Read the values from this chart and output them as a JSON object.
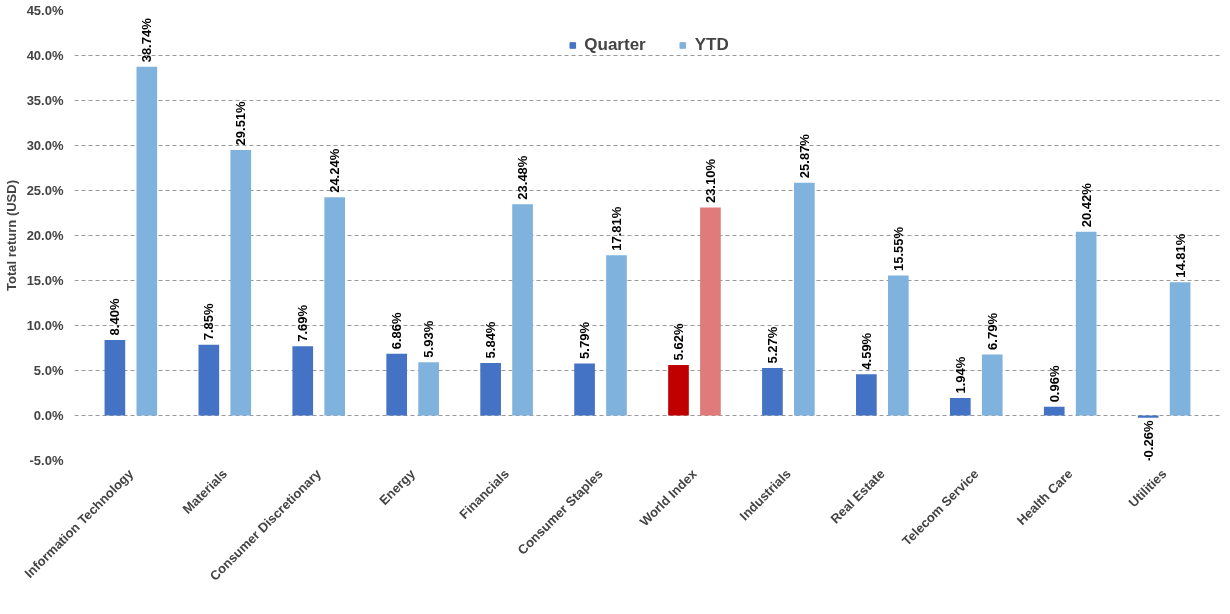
{
  "chart_data": {
    "type": "bar",
    "ylabel": "Total return (USD)",
    "categories": [
      "Information Technology",
      "Materials",
      "Consumer Discretionary",
      "Energy",
      "Financials",
      "Consumer Staples",
      "World Index",
      "Industrials",
      "Real Estate",
      "Telecom Service",
      "Health Care",
      "Utilities"
    ],
    "series": [
      {
        "name": "Quarter",
        "color": "#4472c4",
        "colors": [
          "#4472c4",
          "#4472c4",
          "#4472c4",
          "#4472c4",
          "#4472c4",
          "#4472c4",
          "#c00000",
          "#4472c4",
          "#4472c4",
          "#4472c4",
          "#4472c4",
          "#4472c4"
        ],
        "values": [
          8.4,
          7.85,
          7.69,
          6.86,
          5.84,
          5.79,
          5.62,
          5.27,
          4.59,
          1.94,
          0.96,
          -0.26
        ],
        "value_labels": [
          "8.40%",
          "7.85%",
          "7.69%",
          "6.86%",
          "5.84%",
          "5.79%",
          "5.62%",
          "5.27%",
          "4.59%",
          "1.94%",
          "0.96%",
          "-0.26%"
        ]
      },
      {
        "name": "YTD",
        "color": "#7fb2dd",
        "colors": [
          "#7fb2dd",
          "#7fb2dd",
          "#7fb2dd",
          "#7fb2dd",
          "#7fb2dd",
          "#7fb2dd",
          "#e07b7b",
          "#7fb2dd",
          "#7fb2dd",
          "#7fb2dd",
          "#7fb2dd",
          "#7fb2dd"
        ],
        "values": [
          38.74,
          29.51,
          24.24,
          5.93,
          23.48,
          17.81,
          23.1,
          25.87,
          15.55,
          6.79,
          20.42,
          14.81
        ],
        "value_labels": [
          "38.74%",
          "29.51%",
          "24.24%",
          "5.93%",
          "23.48%",
          "17.81%",
          "23.10%",
          "25.87%",
          "15.55%",
          "6.79%",
          "20.42%",
          "14.81%"
        ]
      }
    ],
    "ylim": [
      -5,
      45
    ],
    "yticks": [
      {
        "value": -5,
        "label": "-5.0%"
      },
      {
        "value": 0,
        "label": "0.0%"
      },
      {
        "value": 5,
        "label": "5.0%"
      },
      {
        "value": 10,
        "label": "10.0%"
      },
      {
        "value": 15,
        "label": "15.0%"
      },
      {
        "value": 20,
        "label": "20.0%"
      },
      {
        "value": 25,
        "label": "25.0%"
      },
      {
        "value": 30,
        "label": "30.0%"
      },
      {
        "value": 35,
        "label": "35.0%"
      },
      {
        "value": 40,
        "label": "40.0%"
      },
      {
        "value": 45,
        "label": "45.0%"
      }
    ],
    "grid": "y",
    "legend": "top"
  }
}
